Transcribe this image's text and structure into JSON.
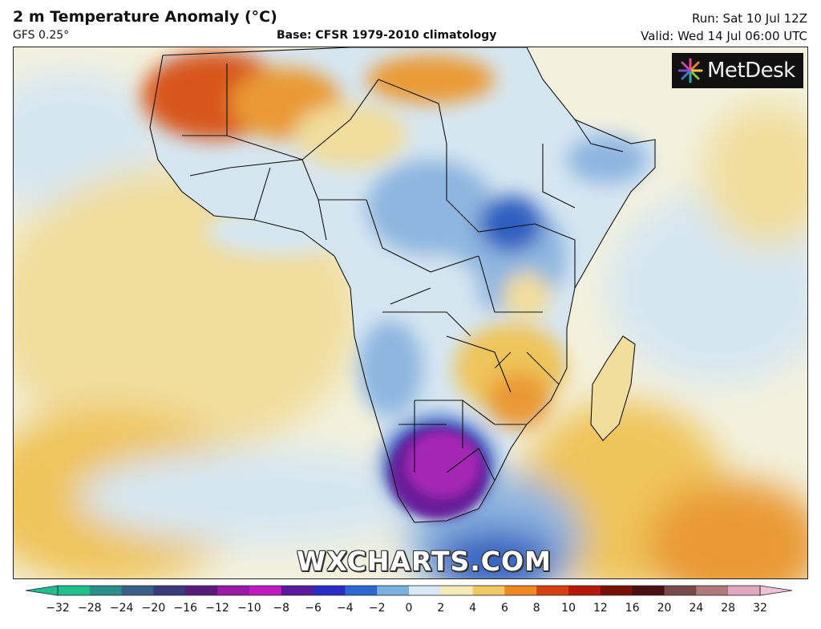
{
  "header": {
    "title": "2 m Temperature Anomaly (°C)",
    "model": "GFS 0.25°",
    "base": "Base: CFSR 1979-2010 climatology",
    "run": "Run: Sat 10 Jul 12Z",
    "valid": "Valid: Wed 14 Jul 06:00 UTC"
  },
  "logo": {
    "text": "MetDesk",
    "icon": "metdesk-starburst-icon"
  },
  "watermark": "WXCHARTS.COM",
  "colorbar": {
    "ticks": [
      "−32",
      "−28",
      "−24",
      "−20",
      "−16",
      "−12",
      "−10",
      "−8",
      "−6",
      "−4",
      "−2",
      "0",
      "2",
      "4",
      "6",
      "8",
      "10",
      "12",
      "16",
      "20",
      "24",
      "28",
      "32"
    ],
    "colors": [
      "#1fbf8f",
      "#2a8f8a",
      "#3a5f86",
      "#3a3a7a",
      "#5a1a7a",
      "#9a1aa8",
      "#c21ac2",
      "#5a1aa0",
      "#2a2ac8",
      "#2a6ad0",
      "#7ab0e0",
      "#d8e8f4",
      "#f6eab8",
      "#f2c860",
      "#f08a20",
      "#d84010",
      "#b81808",
      "#7a1008",
      "#4a1010",
      "#7a4a4a",
      "#b07a7a",
      "#e0a8c0",
      "#f0c0d8"
    ],
    "arrow_left_color": "#1fbf8f",
    "arrow_right_color": "#f0c0d8"
  },
  "map_colors": {
    "ocean_neutral": "#f3f1de",
    "warm_weak": "#f1dd9c",
    "warm_mid": "#efc45a",
    "warm_strong": "#ea9a34",
    "hot": "#d8561a",
    "cool_weak": "#d6e6f1",
    "cool_mid": "#8fb6e0",
    "cold": "#2f5fc0",
    "very_cold": "#6a1a9a",
    "extreme_cold": "#a526b5",
    "border": "#111111"
  }
}
